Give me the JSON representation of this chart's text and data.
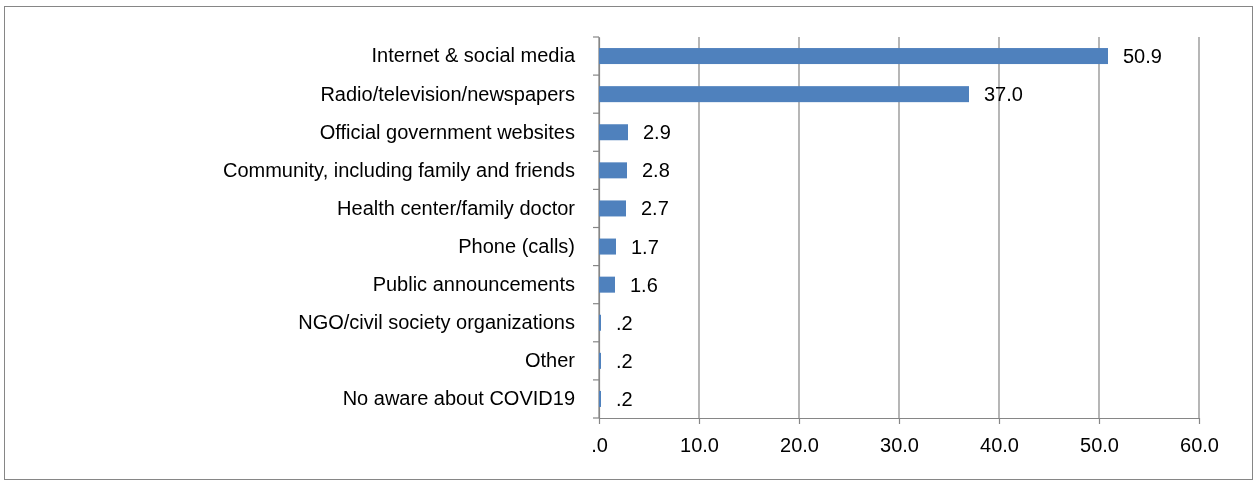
{
  "chart_data": {
    "type": "bar",
    "orientation": "horizontal",
    "categories": [
      "Internet & social media",
      "Radio/television/newspapers",
      "Official government websites",
      "Community, including family and friends",
      "Health center/family doctor",
      "Phone (calls)",
      "Public announcements",
      "NGO/civil society organizations",
      "Other",
      "No aware about COVID19"
    ],
    "values": [
      50.9,
      37.0,
      2.9,
      2.8,
      2.7,
      1.7,
      1.6,
      0.2,
      0.2,
      0.2
    ],
    "value_labels": [
      "50.9",
      "37.0",
      "2.9",
      "2.8",
      "2.7",
      "1.7",
      "1.6",
      ".2",
      ".2",
      ".2"
    ],
    "color": "#4f81bd",
    "xlim": [
      0,
      60
    ],
    "xticks": [
      {
        "value": 0,
        "label": ".0"
      },
      {
        "value": 10,
        "label": "10.0"
      },
      {
        "value": 20,
        "label": "20.0"
      },
      {
        "value": 30,
        "label": "30.0"
      },
      {
        "value": 40,
        "label": "40.0"
      },
      {
        "value": 50,
        "label": "50.0"
      },
      {
        "value": 60,
        "label": "60.0"
      }
    ],
    "grid": "x"
  }
}
